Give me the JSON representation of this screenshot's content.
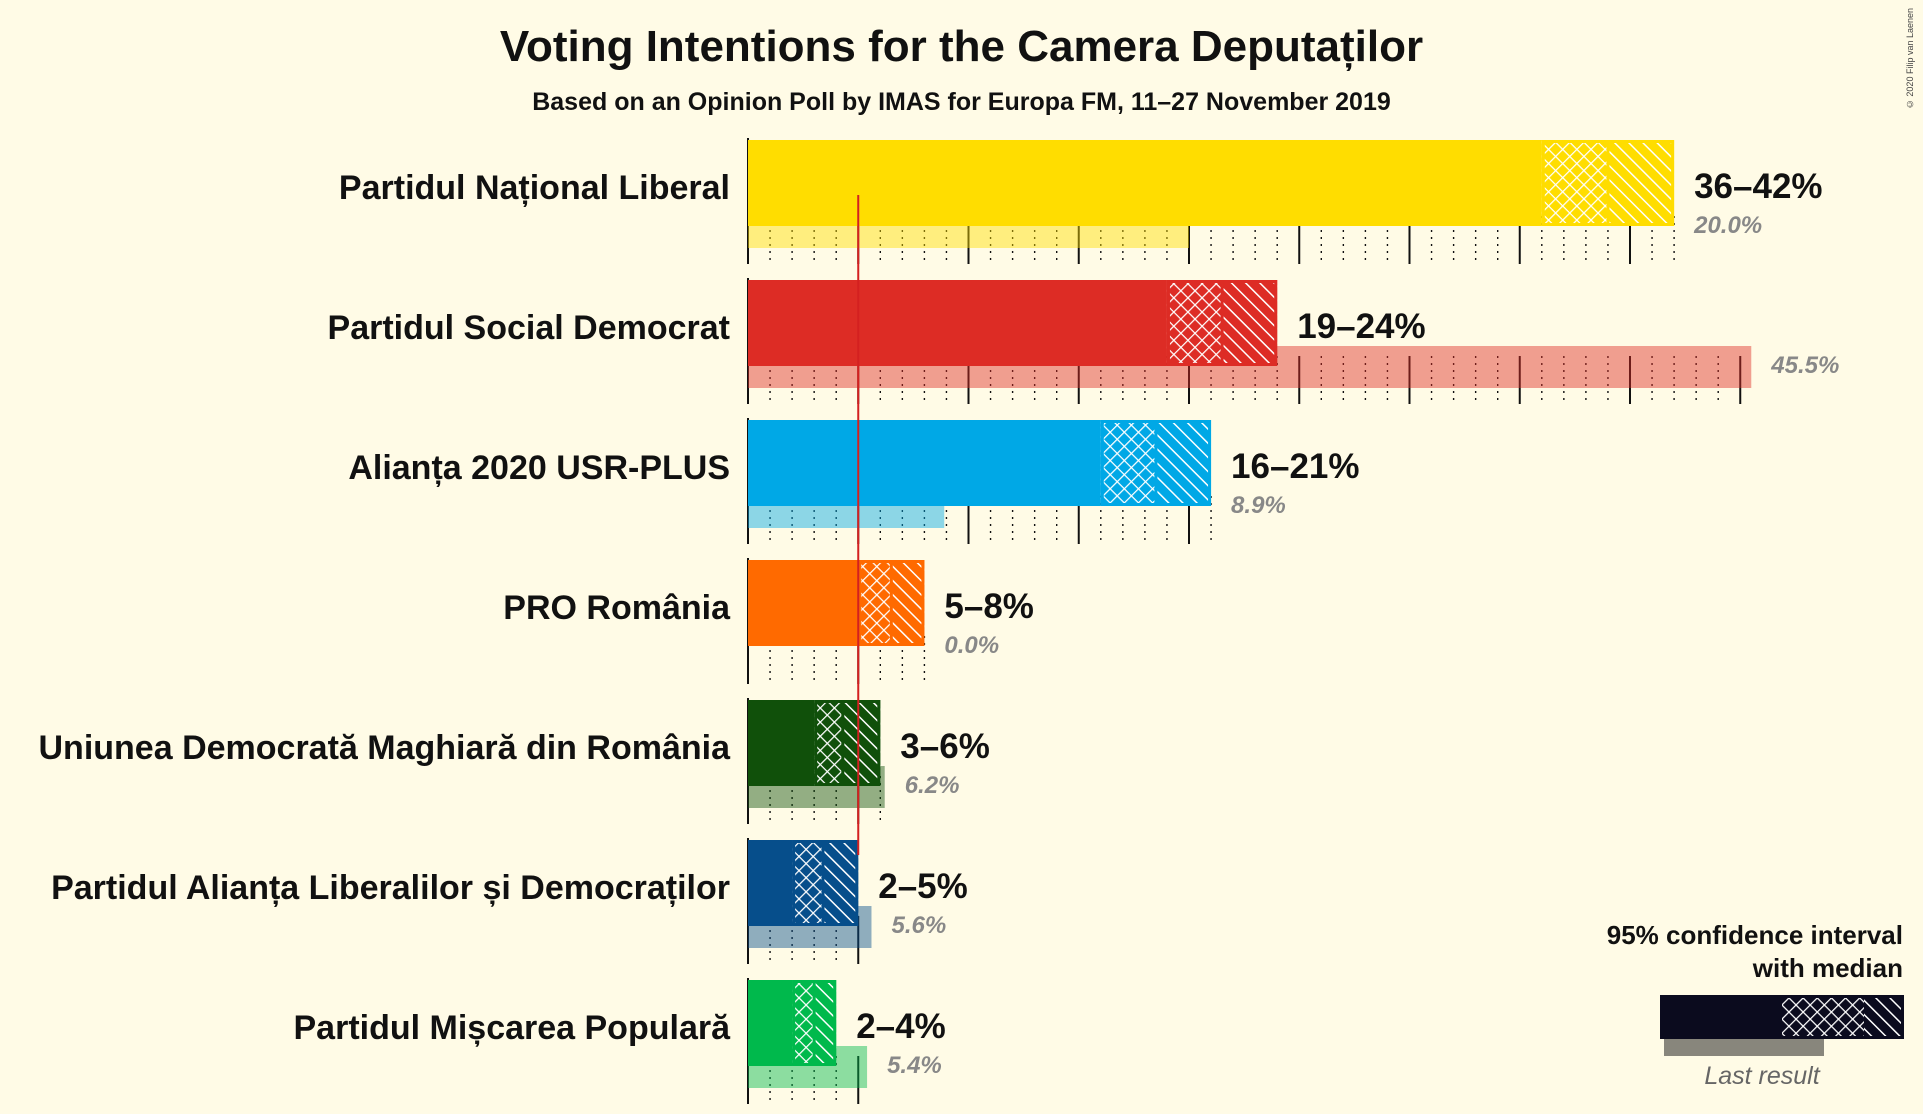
{
  "title": "Voting Intentions for the Camera Deputaților",
  "subtitle": "Based on an Opinion Poll by IMAS for Europa FM, 11–27 November 2019",
  "credit": "© 2020 Filip van Laenen",
  "legend": {
    "title_line1": "95% confidence interval",
    "title_line2": "with median",
    "last_result": "Last result"
  },
  "chart_data": {
    "type": "bar",
    "orientation": "horizontal",
    "x_unit": "%",
    "threshold": 5,
    "xlim": [
      0,
      46
    ],
    "series": [
      {
        "name": "Partidul Național Liberal",
        "color": "#ffdd00",
        "ci_low": 36,
        "median": 39,
        "ci_high": 42,
        "range_label": "36–42%",
        "last_result": 20.0,
        "last_label": "20.0%"
      },
      {
        "name": "Partidul Social Democrat",
        "color": "#dd2c25",
        "ci_low": 19,
        "median": 21.5,
        "ci_high": 24,
        "range_label": "19–24%",
        "last_result": 45.5,
        "last_label": "45.5%"
      },
      {
        "name": "Alianța 2020 USR-PLUS",
        "color": "#00a8e6",
        "ci_low": 16,
        "median": 18.5,
        "ci_high": 21,
        "range_label": "16–21%",
        "last_result": 8.9,
        "last_label": "8.9%"
      },
      {
        "name": "PRO România",
        "color": "#ff6a00",
        "ci_low": 5,
        "median": 6.5,
        "ci_high": 8,
        "range_label": "5–8%",
        "last_result": 0.0,
        "last_label": "0.0%"
      },
      {
        "name": "Uniunea Democrată Maghiară din România",
        "color": "#10500a",
        "ci_low": 3,
        "median": 4.3,
        "ci_high": 6,
        "range_label": "3–6%",
        "last_result": 6.2,
        "last_label": "6.2%"
      },
      {
        "name": "Partidul Alianța Liberalilor și Democraților",
        "color": "#064e8b",
        "ci_low": 2,
        "median": 3.4,
        "ci_high": 5,
        "range_label": "2–5%",
        "last_result": 5.6,
        "last_label": "5.6%"
      },
      {
        "name": "Partidul Mișcarea Populară",
        "color": "#00b94c",
        "ci_low": 2,
        "median": 3.0,
        "ci_high": 4,
        "range_label": "2–4%",
        "last_result": 5.4,
        "last_label": "5.4%"
      }
    ]
  }
}
